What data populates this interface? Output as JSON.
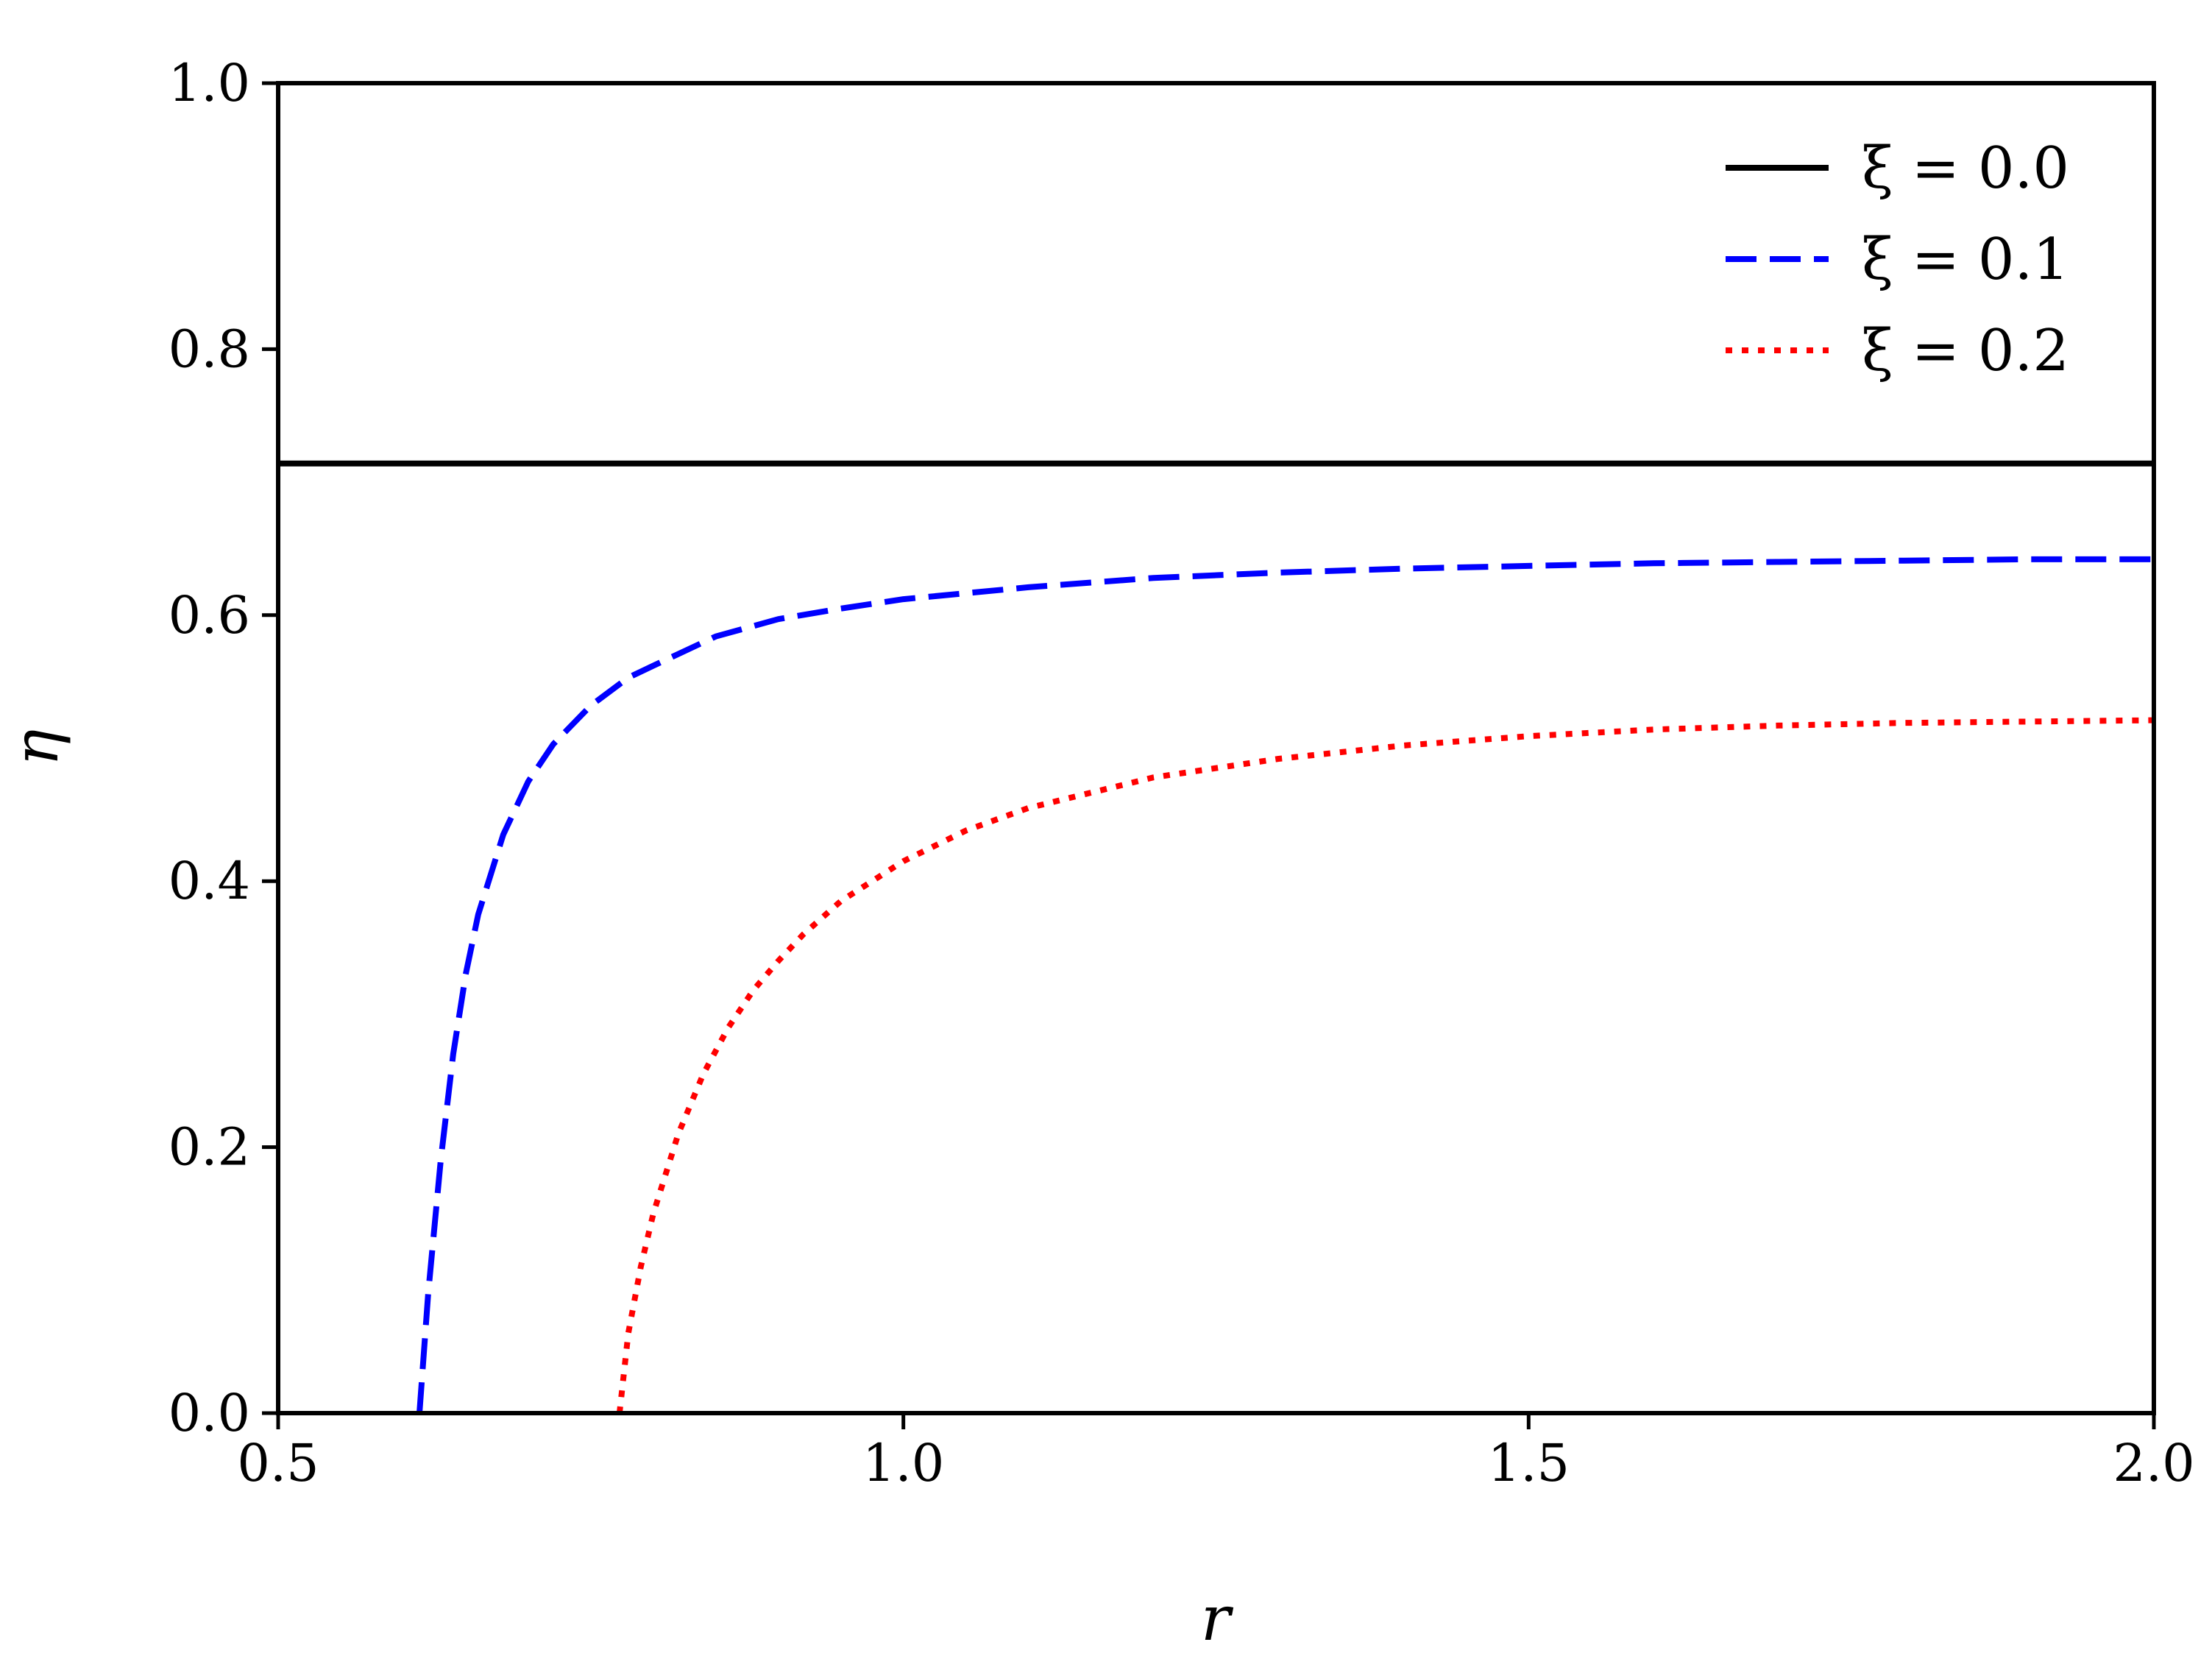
{
  "chart_data": {
    "type": "line",
    "xlabel": "r",
    "ylabel": "η",
    "xlim": [
      0.5,
      2.0
    ],
    "ylim": [
      0.0,
      1.0
    ],
    "xticks": [
      "0.5",
      "1.0",
      "1.5",
      "2.0"
    ],
    "yticks": [
      "0.0",
      "0.2",
      "0.4",
      "0.6",
      "0.8",
      "1.0"
    ],
    "grid": false,
    "legend_position": "top-right",
    "series": [
      {
        "name": "ξ = 0.0",
        "color": "#000000",
        "style": "solid",
        "x": [
          0.5,
          0.75,
          1.0,
          1.25,
          1.5,
          1.75,
          2.0
        ],
        "y": [
          0.714,
          0.714,
          0.714,
          0.714,
          0.714,
          0.714,
          0.714
        ]
      },
      {
        "name": "ξ = 0.1",
        "color": "#0000ff",
        "style": "dashed",
        "x": [
          0.613,
          0.62,
          0.63,
          0.64,
          0.65,
          0.66,
          0.68,
          0.7,
          0.72,
          0.75,
          0.78,
          0.8,
          0.85,
          0.9,
          0.95,
          1.0,
          1.1,
          1.2,
          1.3,
          1.4,
          1.5,
          1.6,
          1.7,
          1.8,
          1.9,
          2.0
        ],
        "y": [
          0.0,
          0.09,
          0.19,
          0.27,
          0.33,
          0.375,
          0.435,
          0.475,
          0.503,
          0.532,
          0.553,
          0.562,
          0.584,
          0.597,
          0.605,
          0.612,
          0.621,
          0.628,
          0.632,
          0.635,
          0.637,
          0.639,
          0.64,
          0.641,
          0.642,
          0.642
        ]
      },
      {
        "name": "ξ = 0.2",
        "color": "#ff0000",
        "style": "dotted",
        "x": [
          0.773,
          0.78,
          0.79,
          0.8,
          0.82,
          0.84,
          0.86,
          0.88,
          0.9,
          0.92,
          0.95,
          1.0,
          1.05,
          1.1,
          1.2,
          1.3,
          1.4,
          1.5,
          1.6,
          1.7,
          1.8,
          1.9,
          2.0
        ],
        "y": [
          0.0,
          0.06,
          0.11,
          0.15,
          0.21,
          0.255,
          0.29,
          0.318,
          0.34,
          0.36,
          0.385,
          0.415,
          0.438,
          0.455,
          0.478,
          0.492,
          0.502,
          0.509,
          0.514,
          0.517,
          0.519,
          0.52,
          0.521
        ]
      }
    ]
  }
}
